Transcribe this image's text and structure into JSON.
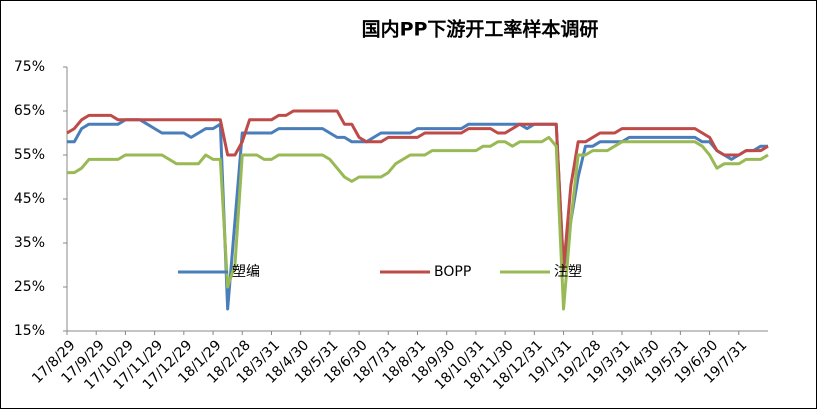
{
  "chart_data": {
    "type": "line",
    "title": "国内PP下游开工率样本调研",
    "categories": [
      "17/8/29",
      null,
      null,
      null,
      "17/9/29",
      null,
      null,
      null,
      "17/10/29",
      null,
      null,
      null,
      "17/11/29",
      null,
      null,
      null,
      "17/12/29",
      null,
      null,
      null,
      "18/1/29",
      null,
      null,
      null,
      "18/2/28",
      null,
      null,
      null,
      "18/3/31",
      null,
      null,
      null,
      "18/4/30",
      null,
      null,
      null,
      "18/5/31",
      null,
      null,
      null,
      "18/6/30",
      null,
      null,
      null,
      "18/7/31",
      null,
      null,
      null,
      "18/8/31",
      null,
      null,
      null,
      "18/9/30",
      null,
      null,
      null,
      "18/10/31",
      null,
      null,
      null,
      "18/11/30",
      null,
      null,
      null,
      "18/12/31",
      null,
      null,
      null,
      "19/1/31",
      null,
      null,
      null,
      "19/2/28",
      null,
      null,
      null,
      "19/3/31",
      null,
      null,
      null,
      "19/4/30",
      null,
      null,
      null,
      "19/5/31",
      null,
      null,
      null,
      "19/6/30",
      null,
      null,
      null,
      "19/7/31",
      null,
      null,
      null,
      null
    ],
    "series": [
      {
        "name": "塑编",
        "color": "#4a7ebb",
        "values": [
          58,
          58,
          61,
          62,
          62,
          62,
          62,
          62,
          63,
          63,
          63,
          62,
          61,
          60,
          60,
          60,
          60,
          59,
          60,
          61,
          61,
          62,
          20,
          40,
          60,
          60,
          60,
          60,
          60,
          61,
          61,
          61,
          61,
          61,
          61,
          61,
          60,
          59,
          59,
          58,
          58,
          58,
          59,
          60,
          60,
          60,
          60,
          60,
          61,
          61,
          61,
          61,
          61,
          61,
          61,
          62,
          62,
          62,
          62,
          62,
          62,
          62,
          62,
          61,
          62,
          62,
          62,
          62,
          29,
          40,
          50,
          57,
          57,
          58,
          58,
          58,
          58,
          59,
          59,
          59,
          59,
          59,
          59,
          59,
          59,
          59,
          59,
          58,
          58,
          56,
          55,
          54,
          55,
          56,
          56,
          57,
          57
        ]
      },
      {
        "name": "BOPP",
        "color": "#be4b48",
        "values": [
          60,
          61,
          63,
          64,
          64,
          64,
          64,
          63,
          63,
          63,
          63,
          63,
          63,
          63,
          63,
          63,
          63,
          63,
          63,
          63,
          63,
          63,
          55,
          55,
          58,
          63,
          63,
          63,
          63,
          64,
          64,
          65,
          65,
          65,
          65,
          65,
          65,
          65,
          62,
          62,
          59,
          58,
          58,
          58,
          59,
          59,
          59,
          59,
          59,
          60,
          60,
          60,
          60,
          60,
          60,
          61,
          61,
          61,
          61,
          60,
          60,
          61,
          62,
          62,
          62,
          62,
          62,
          62,
          29,
          48,
          58,
          58,
          59,
          60,
          60,
          60,
          61,
          61,
          61,
          61,
          61,
          61,
          61,
          61,
          61,
          61,
          61,
          60,
          59,
          56,
          55,
          55,
          55,
          56,
          56,
          56,
          57
        ]
      },
      {
        "name": "注塑",
        "color": "#98b954",
        "values": [
          51,
          51,
          52,
          54,
          54,
          54,
          54,
          54,
          55,
          55,
          55,
          55,
          55,
          55,
          54,
          53,
          53,
          53,
          53,
          55,
          54,
          54,
          25,
          30,
          55,
          55,
          55,
          54,
          54,
          55,
          55,
          55,
          55,
          55,
          55,
          55,
          54,
          52,
          50,
          49,
          50,
          50,
          50,
          50,
          51,
          53,
          54,
          55,
          55,
          55,
          56,
          56,
          56,
          56,
          56,
          56,
          56,
          57,
          57,
          58,
          58,
          57,
          58,
          58,
          58,
          58,
          59,
          57,
          20,
          40,
          55,
          55,
          56,
          56,
          56,
          57,
          58,
          58,
          58,
          58,
          58,
          58,
          58,
          58,
          58,
          58,
          58,
          57,
          55,
          52,
          53,
          53,
          53,
          54,
          54,
          54,
          55
        ]
      }
    ],
    "ylim": [
      15,
      75
    ],
    "yticks": [
      {
        "value": 15,
        "label": "15%"
      },
      {
        "value": 25,
        "label": "25%"
      },
      {
        "value": 35,
        "label": "35%"
      },
      {
        "value": 45,
        "label": "45%"
      },
      {
        "value": 55,
        "label": "55%"
      },
      {
        "value": 65,
        "label": "65%"
      },
      {
        "value": 75,
        "label": "75%"
      }
    ],
    "grid": false
  }
}
